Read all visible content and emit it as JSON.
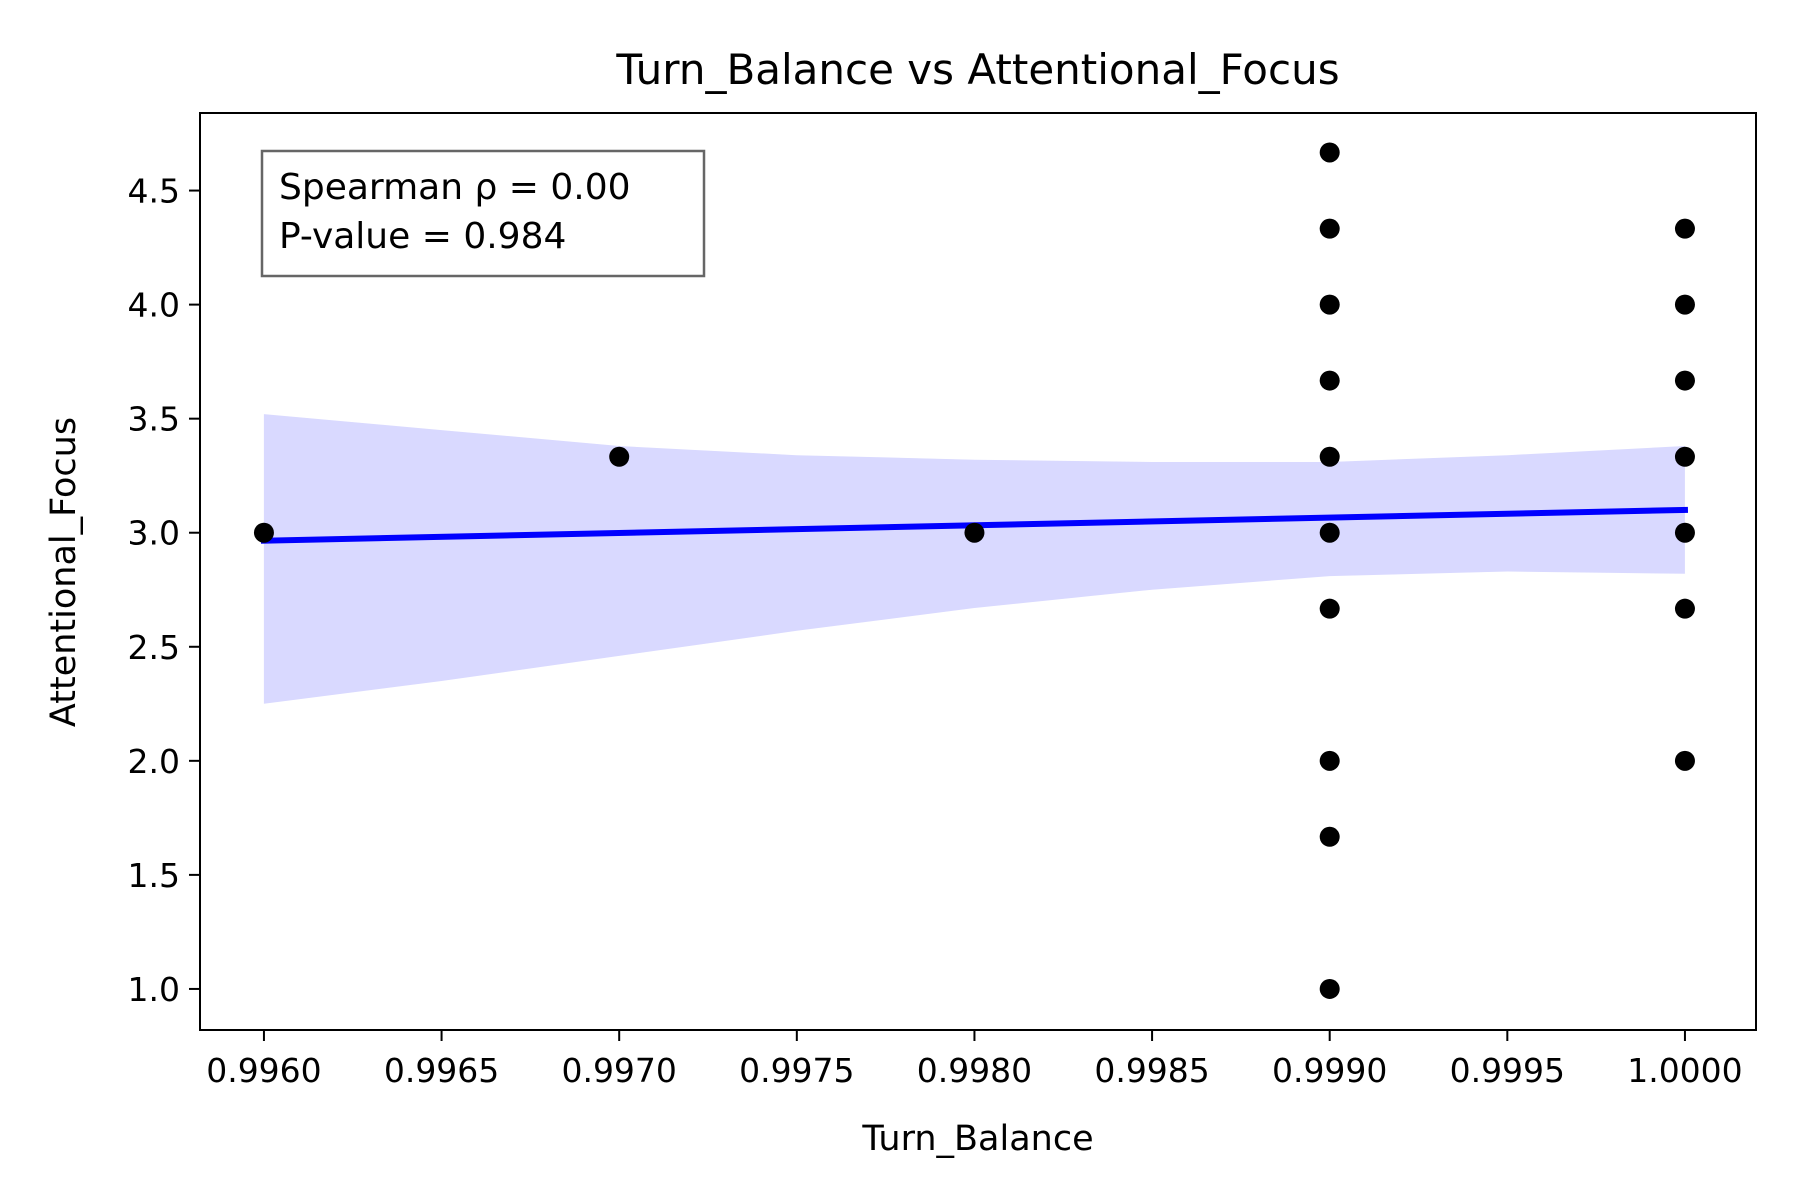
{
  "chart_data": {
    "type": "scatter",
    "title": "Turn_Balance vs Attentional_Focus",
    "xlabel": "Turn_Balance",
    "ylabel": "Attentional_Focus",
    "xlim": [
      0.99582,
      1.0002
    ],
    "ylim": [
      0.82,
      4.84
    ],
    "xticks": [
      0.996,
      0.9965,
      0.997,
      0.9975,
      0.998,
      0.9985,
      0.999,
      0.9995,
      1.0
    ],
    "xtick_labels": [
      "0.9960",
      "0.9965",
      "0.9970",
      "0.9975",
      "0.9980",
      "0.9985",
      "0.9990",
      "0.9995",
      "1.0000"
    ],
    "yticks": [
      1.0,
      1.5,
      2.0,
      2.5,
      3.0,
      3.5,
      4.0,
      4.5
    ],
    "ytick_labels": [
      "1.0",
      "1.5",
      "2.0",
      "2.5",
      "3.0",
      "3.5",
      "4.0",
      "4.5"
    ],
    "grid": false,
    "points": [
      {
        "x": 0.996,
        "y": 3.0
      },
      {
        "x": 0.997,
        "y": 3.333
      },
      {
        "x": 0.998,
        "y": 3.0
      },
      {
        "x": 0.999,
        "y": 4.667
      },
      {
        "x": 0.999,
        "y": 4.333
      },
      {
        "x": 0.999,
        "y": 4.0
      },
      {
        "x": 0.999,
        "y": 3.667
      },
      {
        "x": 0.999,
        "y": 3.333
      },
      {
        "x": 0.999,
        "y": 3.0
      },
      {
        "x": 0.999,
        "y": 2.667
      },
      {
        "x": 0.999,
        "y": 2.0
      },
      {
        "x": 0.999,
        "y": 1.667
      },
      {
        "x": 0.999,
        "y": 1.0
      },
      {
        "x": 1.0,
        "y": 4.333
      },
      {
        "x": 1.0,
        "y": 4.0
      },
      {
        "x": 1.0,
        "y": 3.667
      },
      {
        "x": 1.0,
        "y": 3.333
      },
      {
        "x": 1.0,
        "y": 3.0
      },
      {
        "x": 1.0,
        "y": 2.667
      },
      {
        "x": 1.0,
        "y": 2.0
      }
    ],
    "regression_line": {
      "x": [
        0.996,
        1.0
      ],
      "y": [
        2.965,
        3.1
      ]
    },
    "confidence_band": {
      "x": [
        0.996,
        0.9965,
        0.997,
        0.9975,
        0.998,
        0.9985,
        0.999,
        0.9995,
        1.0
      ],
      "upper": [
        3.52,
        3.45,
        3.38,
        3.34,
        3.32,
        3.31,
        3.31,
        3.34,
        3.38
      ],
      "lower": [
        2.25,
        2.35,
        2.46,
        2.57,
        2.67,
        2.75,
        2.81,
        2.83,
        2.82
      ]
    },
    "colors": {
      "points": "#000000",
      "regression_line": "#0000ff",
      "confidence_band": "#d9d9ff"
    },
    "annotation": {
      "line1": "Spearman ρ = 0.00",
      "line2": "P-value = 0.984",
      "placement": "top-left"
    }
  }
}
